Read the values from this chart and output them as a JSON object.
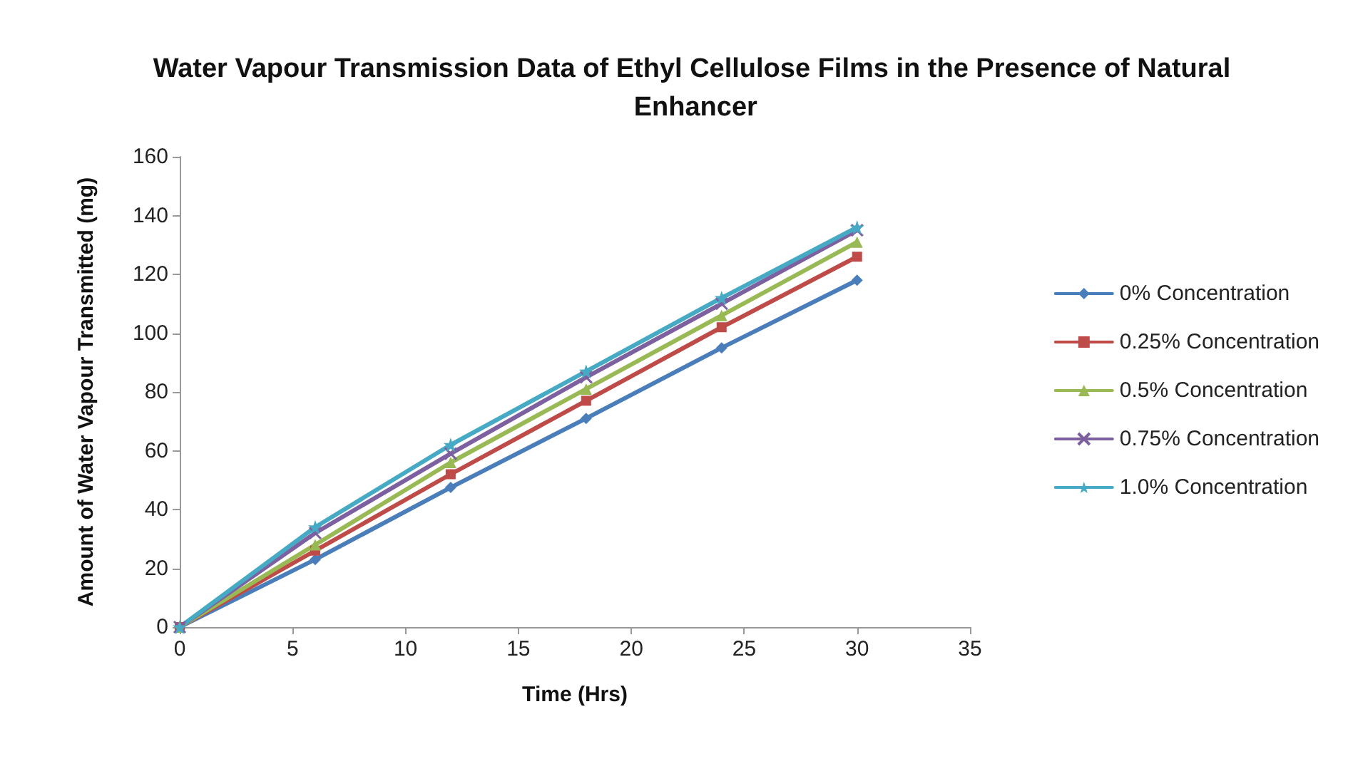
{
  "chart_data": {
    "type": "line",
    "title": "Water Vapour Transmission Data of Ethyl Cellulose Films in the Presence of Natural Enhancer",
    "xlabel": "Time (Hrs)",
    "ylabel": "Amount of Water Vapour Transmitted (mg)",
    "x": [
      0,
      6,
      12,
      18,
      24,
      30
    ],
    "series": [
      {
        "name": "0% Concentration",
        "color": "#4a7ebb",
        "marker": "diamond",
        "values": [
          0,
          23,
          47.5,
          71,
          95,
          118
        ]
      },
      {
        "name": "0.25% Concentration",
        "color": "#be4b48",
        "marker": "square",
        "values": [
          0,
          26,
          52,
          77,
          102,
          126
        ]
      },
      {
        "name": "0.5% Concentration",
        "color": "#98b954",
        "marker": "triangle",
        "values": [
          0,
          28,
          56,
          81,
          106,
          131
        ]
      },
      {
        "name": "0.75% Concentration",
        "color": "#7d60a0",
        "marker": "cross",
        "values": [
          0,
          32,
          59,
          85,
          110,
          135
        ]
      },
      {
        "name": "1.0% Concentration",
        "color": "#46aac5",
        "marker": "star",
        "values": [
          0,
          34,
          62,
          87,
          112,
          136
        ]
      }
    ],
    "xlim": [
      0,
      35
    ],
    "xticks": [
      0,
      5,
      10,
      15,
      20,
      25,
      30,
      35
    ],
    "ylim": [
      0,
      160
    ],
    "yticks": [
      0,
      20,
      40,
      60,
      80,
      100,
      120,
      140,
      160
    ],
    "grid": false,
    "legend": "right",
    "line_style": "solid"
  }
}
